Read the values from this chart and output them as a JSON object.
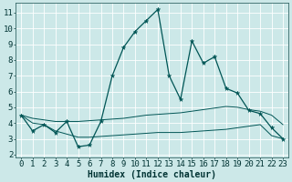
{
  "title": "",
  "xlabel": "Humidex (Indice chaleur)",
  "background_color": "#cce8e8",
  "grid_color": "#ffffff",
  "line_color": "#005555",
  "xlim": [
    -0.5,
    23.5
  ],
  "ylim": [
    1.8,
    11.6
  ],
  "xticks": [
    0,
    1,
    2,
    3,
    4,
    5,
    6,
    7,
    8,
    9,
    10,
    11,
    12,
    13,
    14,
    15,
    16,
    17,
    18,
    19,
    20,
    21,
    22,
    23
  ],
  "yticks": [
    2,
    3,
    4,
    5,
    6,
    7,
    8,
    9,
    10,
    11
  ],
  "main_y": [
    4.5,
    3.5,
    3.9,
    3.4,
    4.1,
    2.5,
    2.6,
    4.1,
    7.0,
    8.8,
    9.8,
    10.5,
    11.2,
    7.0,
    5.5,
    9.2,
    7.8,
    8.2,
    6.2,
    5.9,
    4.8,
    4.6,
    3.7,
    3.0
  ],
  "trend_upper_y": [
    4.5,
    4.3,
    4.2,
    4.1,
    4.1,
    4.1,
    4.15,
    4.2,
    4.25,
    4.3,
    4.4,
    4.5,
    4.55,
    4.6,
    4.65,
    4.75,
    4.85,
    4.95,
    5.05,
    5.0,
    4.85,
    4.75,
    4.5,
    3.9
  ],
  "trend_lower_y": [
    4.5,
    4.0,
    3.9,
    3.5,
    3.3,
    3.1,
    3.1,
    3.15,
    3.2,
    3.25,
    3.3,
    3.35,
    3.4,
    3.4,
    3.4,
    3.45,
    3.5,
    3.55,
    3.6,
    3.7,
    3.8,
    3.9,
    3.2,
    3.0
  ],
  "xlabel_fontsize": 7,
  "tick_fontsize": 6.5
}
